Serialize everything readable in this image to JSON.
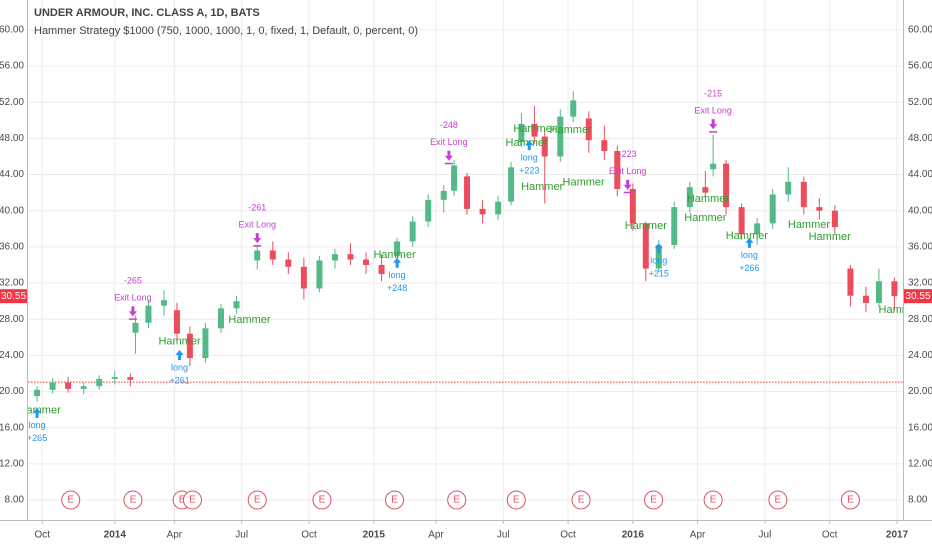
{
  "chart_data": {
    "type": "candlestick",
    "title": "UNDER ARMOUR, INC. CLASS A, 1D, BATS",
    "subtitle": "Hammer Strategy $1000 (750, 1000, 1000, 1, 0, fixed, 1, Default, 0, percent, 0)",
    "up_color": "#53b987",
    "down_color": "#eb4d5c",
    "grid": true,
    "xlim": [
      2013.665,
      2017.043
    ],
    "ylim": [
      5.8,
      63.3
    ],
    "xticks": [
      {
        "value": 2013.72,
        "label": "Oct"
      },
      {
        "value": 2014.0,
        "label": "2014"
      },
      {
        "value": 2014.23,
        "label": "Apr"
      },
      {
        "value": 2014.49,
        "label": "Jul"
      },
      {
        "value": 2014.75,
        "label": "Oct"
      },
      {
        "value": 2015.0,
        "label": "2015"
      },
      {
        "value": 2015.24,
        "label": "Apr"
      },
      {
        "value": 2015.5,
        "label": "Jul"
      },
      {
        "value": 2015.75,
        "label": "Oct"
      },
      {
        "value": 2016.0,
        "label": "2016"
      },
      {
        "value": 2016.25,
        "label": "Apr"
      },
      {
        "value": 2016.51,
        "label": "Jul"
      },
      {
        "value": 2016.76,
        "label": "Oct"
      },
      {
        "value": 2017.02,
        "label": "2017"
      }
    ],
    "yticks": [
      {
        "value": 8,
        "label": "8.00"
      },
      {
        "value": 12,
        "label": "12.00"
      },
      {
        "value": 16,
        "label": "16.00"
      },
      {
        "value": 20,
        "label": "20.00"
      },
      {
        "value": 24,
        "label": "24.00"
      },
      {
        "value": 28,
        "label": "28.00"
      },
      {
        "value": 32,
        "label": "32.00"
      },
      {
        "value": 36,
        "label": "36.00"
      },
      {
        "value": 40,
        "label": "40.00"
      },
      {
        "value": 44,
        "label": "44.00"
      },
      {
        "value": 48,
        "label": "48.00"
      },
      {
        "value": 52,
        "label": "52.00"
      },
      {
        "value": 56,
        "label": "56.00"
      },
      {
        "value": 60,
        "label": "60.00"
      }
    ],
    "last_price": {
      "value": 30.55,
      "label": "30.55",
      "color": "#f23645"
    },
    "reference_line": 21.05,
    "x": [
      2013.7,
      2013.76,
      2013.82,
      2013.88,
      2013.94,
      2014.0,
      2014.06,
      2014.08,
      2014.13,
      2014.19,
      2014.24,
      2014.29,
      2014.35,
      2014.41,
      2014.47,
      2014.55,
      2014.61,
      2014.67,
      2014.73,
      2014.79,
      2014.85,
      2014.91,
      2014.97,
      2015.03,
      2015.09,
      2015.15,
      2015.21,
      2015.27,
      2015.31,
      2015.36,
      2015.42,
      2015.48,
      2015.53,
      2015.57,
      2015.62,
      2015.66,
      2015.72,
      2015.77,
      2015.83,
      2015.89,
      2015.94,
      2016.0,
      2016.05,
      2016.1,
      2016.16,
      2016.22,
      2016.28,
      2016.31,
      2016.36,
      2016.42,
      2016.48,
      2016.54,
      2016.6,
      2016.66,
      2016.72,
      2016.78,
      2016.84,
      2016.9,
      2016.95,
      2017.01
    ],
    "open": [
      19.5,
      20.2,
      21.0,
      20.3,
      20.6,
      21.4,
      21.6,
      26.5,
      27.6,
      29.5,
      29.0,
      26.4,
      23.7,
      27.0,
      29.2,
      34.5,
      35.6,
      34.6,
      33.8,
      31.4,
      34.5,
      35.2,
      34.6,
      34.0,
      35.0,
      36.6,
      38.8,
      41.2,
      42.2,
      43.8,
      40.2,
      39.6,
      41.0,
      47.6,
      49.6,
      48.2,
      46.0,
      50.4,
      50.2,
      47.8,
      46.6,
      42.4,
      38.6,
      33.6,
      36.2,
      40.4,
      42.6,
      44.6,
      45.2,
      40.4,
      37.4,
      38.6,
      41.8,
      43.2,
      40.4,
      40.0,
      33.6,
      30.6,
      29.8,
      32.2
    ],
    "high": [
      20.6,
      21.5,
      21.6,
      21.0,
      21.8,
      22.3,
      22.0,
      28.4,
      30.2,
      31.2,
      29.8,
      27.2,
      27.6,
      29.7,
      30.6,
      36.2,
      36.6,
      35.4,
      34.8,
      35.0,
      35.8,
      36.4,
      35.4,
      35.2,
      37.0,
      39.4,
      41.8,
      42.8,
      45.6,
      44.2,
      41.2,
      41.6,
      45.4,
      50.8,
      51.6,
      49.0,
      51.2,
      53.2,
      51.0,
      49.4,
      47.2,
      43.0,
      38.8,
      36.8,
      41.0,
      43.2,
      44.4,
      48.4,
      45.6,
      40.8,
      39.2,
      42.4,
      44.8,
      43.8,
      41.4,
      40.6,
      34.0,
      31.6,
      33.6,
      32.6
    ],
    "low": [
      18.9,
      19.8,
      19.9,
      19.7,
      20.2,
      20.8,
      20.6,
      24.2,
      27.0,
      28.4,
      25.6,
      22.8,
      23.2,
      26.5,
      28.6,
      33.5,
      34.0,
      33.0,
      30.2,
      31.0,
      33.6,
      34.0,
      33.0,
      32.2,
      34.6,
      36.0,
      38.2,
      39.8,
      41.6,
      39.6,
      38.6,
      39.0,
      40.6,
      47.0,
      47.4,
      40.8,
      45.4,
      49.8,
      46.4,
      45.6,
      41.6,
      37.8,
      32.2,
      33.2,
      35.8,
      39.8,
      41.4,
      43.8,
      39.6,
      36.8,
      36.2,
      38.0,
      41.0,
      39.6,
      39.0,
      37.4,
      29.4,
      28.8,
      29.4,
      29.0
    ],
    "close": [
      20.2,
      21.0,
      20.3,
      20.6,
      21.4,
      21.6,
      21.3,
      27.6,
      29.5,
      30.1,
      26.4,
      23.7,
      27.0,
      29.2,
      30.0,
      35.6,
      34.6,
      33.8,
      31.4,
      34.5,
      35.2,
      34.6,
      34.0,
      33.0,
      36.6,
      38.8,
      41.2,
      42.2,
      45.0,
      40.2,
      39.6,
      41.0,
      44.8,
      49.6,
      48.2,
      46.0,
      50.4,
      52.2,
      47.8,
      46.6,
      42.4,
      38.6,
      33.6,
      36.2,
      40.4,
      42.6,
      42.0,
      45.2,
      40.4,
      37.4,
      38.6,
      41.8,
      43.2,
      40.4,
      40.0,
      38.2,
      30.6,
      29.8,
      32.2,
      30.55
    ],
    "entries": [
      {
        "x": 2013.7,
        "price": 18.2,
        "label": "long",
        "profit": "+265"
      },
      {
        "x": 2014.25,
        "price": 24.6,
        "label": "long",
        "profit": "+261"
      },
      {
        "x": 2015.09,
        "price": 34.8,
        "label": "long",
        "profit": "+248"
      },
      {
        "x": 2015.6,
        "price": 47.8,
        "label": "long",
        "profit": "+223"
      },
      {
        "x": 2016.1,
        "price": 36.4,
        "label": "long",
        "profit": "+215"
      },
      {
        "x": 2016.45,
        "price": 37.0,
        "label": "long",
        "profit": "+266"
      }
    ],
    "exits": [
      {
        "x": 2014.07,
        "price": 28.1,
        "label": "Exit Long",
        "profit": "-265"
      },
      {
        "x": 2014.55,
        "price": 36.2,
        "label": "Exit Long",
        "profit": "-261"
      },
      {
        "x": 2015.29,
        "price": 45.3,
        "label": "Exit Long",
        "profit": "-248"
      },
      {
        "x": 2015.98,
        "price": 42.1,
        "label": "Exit Long",
        "profit": "-223"
      },
      {
        "x": 2016.31,
        "price": 48.8,
        "label": "Exit Long",
        "profit": "-215"
      }
    ],
    "entry_color": "#2196f3",
    "exit_color": "#c63fd1",
    "hammer_color": "#2e9e2e",
    "hammers": [
      {
        "x": 2013.71,
        "price": 17.9,
        "label": "Hammer"
      },
      {
        "x": 2014.25,
        "price": 25.5,
        "label": "Hammer"
      },
      {
        "x": 2014.52,
        "price": 27.9,
        "label": "Hammer"
      },
      {
        "x": 2015.08,
        "price": 35.1,
        "label": "Hammer"
      },
      {
        "x": 2015.62,
        "price": 49.0,
        "label": "Hammer"
      },
      {
        "x": 2015.59,
        "price": 47.5,
        "label": "Hammer"
      },
      {
        "x": 2015.76,
        "price": 48.9,
        "label": "Hammer"
      },
      {
        "x": 2015.65,
        "price": 42.6,
        "label": "Hammer"
      },
      {
        "x": 2015.81,
        "price": 43.1,
        "label": "Hammer"
      },
      {
        "x": 2016.05,
        "price": 38.3,
        "label": "Hammer"
      },
      {
        "x": 2016.29,
        "price": 41.3,
        "label": "Hammer"
      },
      {
        "x": 2016.28,
        "price": 39.2,
        "label": "Hammer"
      },
      {
        "x": 2016.44,
        "price": 37.2,
        "label": "Hammer"
      },
      {
        "x": 2016.68,
        "price": 38.4,
        "label": "Hammer"
      },
      {
        "x": 2016.76,
        "price": 37.1,
        "label": "Hammer"
      },
      {
        "x": 2017.03,
        "price": 29.0,
        "label": "Hammer"
      }
    ],
    "earnings": [
      {
        "x": 2013.83,
        "label": "E"
      },
      {
        "x": 2014.07,
        "label": "E"
      },
      {
        "x": 2014.26,
        "label": "E"
      },
      {
        "x": 2014.3,
        "label": "E"
      },
      {
        "x": 2014.55,
        "label": "E"
      },
      {
        "x": 2014.8,
        "label": "E"
      },
      {
        "x": 2015.08,
        "label": "E"
      },
      {
        "x": 2015.32,
        "label": "E"
      },
      {
        "x": 2015.55,
        "label": "E"
      },
      {
        "x": 2015.8,
        "label": "E"
      },
      {
        "x": 2016.08,
        "label": "E"
      },
      {
        "x": 2016.31,
        "label": "E"
      },
      {
        "x": 2016.56,
        "label": "E"
      },
      {
        "x": 2016.84,
        "label": "E"
      }
    ]
  }
}
